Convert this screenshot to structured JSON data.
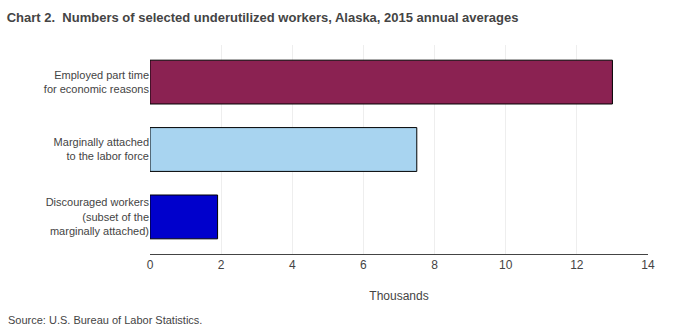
{
  "chart_data": {
    "type": "bar",
    "orientation": "horizontal",
    "title": "Chart 2.  Numbers of selected underutilized workers, Alaska, 2015 annual averages",
    "categories": [
      "Discouraged workers\n(subset of the\nmarginally attached)",
      "Marginally attached\nto the labor force",
      "Employed part time\nfor economic reasons"
    ],
    "values": [
      1.9,
      7.5,
      13.0
    ],
    "colors": [
      "#0000cc",
      "#a8d4f0",
      "#8b2252"
    ],
    "xlabel": "Thousands",
    "xlim": [
      0,
      14
    ],
    "xticks": [
      0,
      2,
      4,
      6,
      8,
      10,
      12,
      14
    ],
    "grid": true,
    "annotations": [
      "Source: U.S. Bureau of Labor Statistics."
    ]
  }
}
